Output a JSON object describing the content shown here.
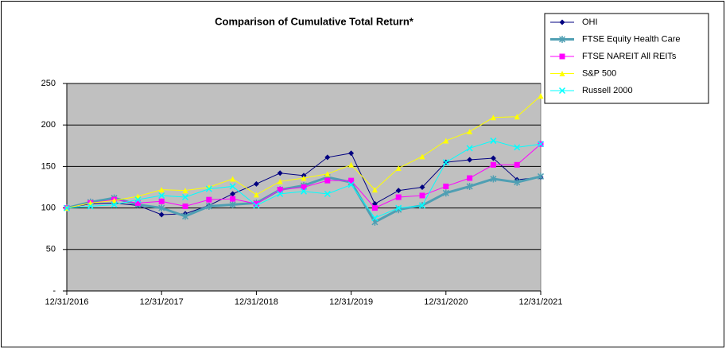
{
  "chart_data": {
    "type": "line",
    "title": "Comparison of Cumulative Total Return*",
    "categories": [
      "12/31/2016",
      null,
      null,
      null,
      "12/31/2017",
      null,
      null,
      null,
      "12/31/2018",
      null,
      null,
      null,
      "12/31/2019",
      null,
      null,
      null,
      "12/31/2020",
      null,
      null,
      null,
      "12/31/2021"
    ],
    "ylim": [
      0,
      250
    ],
    "yticks": [
      {
        "value": 0,
        "label": "-"
      },
      50,
      100,
      150,
      200,
      250
    ],
    "grid": true,
    "legend": "right",
    "series": [
      {
        "name": "OHI",
        "color": "#000080",
        "marker": "diamond",
        "line_width": 1,
        "values": [
          100,
          105,
          106,
          103,
          92,
          93,
          103,
          117,
          129,
          142,
          139,
          161,
          166,
          105,
          121,
          125,
          155,
          158,
          160,
          134,
          137
        ]
      },
      {
        "name": "FTSE Equity Health Care",
        "color": "#4f9fb3",
        "marker": "star",
        "line_width": 3,
        "values": [
          100,
          107,
          112,
          104,
          100,
          90,
          102,
          104,
          106,
          122,
          127,
          137,
          131,
          83,
          98,
          103,
          118,
          126,
          135,
          131,
          138
        ]
      },
      {
        "name": "FTSE NAREIT All REITs",
        "color": "#ff00ff",
        "marker": "square",
        "line_width": 1,
        "values": [
          100,
          106,
          110,
          106,
          108,
          102,
          110,
          111,
          105,
          122,
          125,
          133,
          133,
          100,
          113,
          115,
          126,
          136,
          152,
          152,
          177
        ]
      },
      {
        "name": "S&P 500",
        "color": "#ffff00",
        "marker": "triangle",
        "line_width": 1,
        "values": [
          100,
          106,
          109,
          114,
          122,
          121,
          125,
          135,
          116,
          132,
          136,
          141,
          152,
          122,
          148,
          162,
          181,
          192,
          209,
          210,
          235
        ]
      },
      {
        "name": "Russell 2000",
        "color": "#00ffff",
        "marker": "x",
        "line_width": 1,
        "values": [
          100,
          102,
          104,
          110,
          115,
          113,
          123,
          126,
          103,
          117,
          120,
          117,
          128,
          88,
          100,
          103,
          155,
          172,
          181,
          173,
          177
        ]
      }
    ]
  }
}
